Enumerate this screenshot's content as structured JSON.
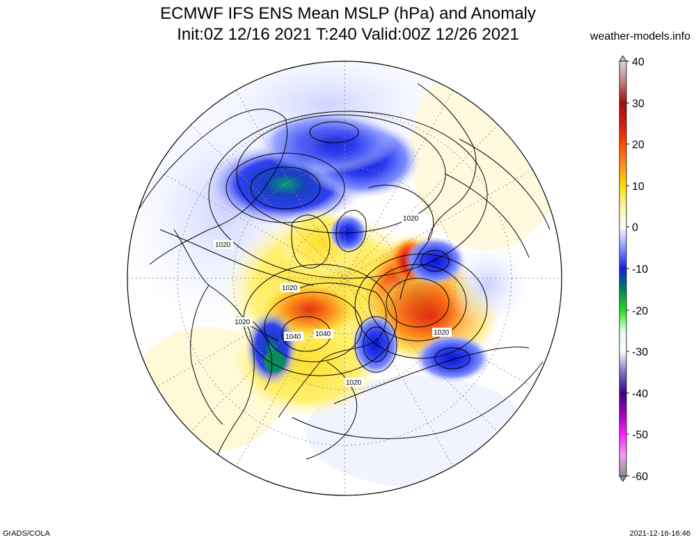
{
  "title_line1": "ECMWF IFS ENS Mean MSLP (hPa) and Anomaly",
  "title_line2": "Init:0Z 12/16 2021  T:240 Valid:00Z 12/26 2021",
  "source_site": "weather-models.info",
  "footer_left": "GrADS/COLA",
  "footer_right": "2021-12-16-16:46",
  "colorbar": {
    "ticks": [
      "40",
      "30",
      "20",
      "10",
      "0",
      "-10",
      "-20",
      "-30",
      "-40",
      "-50",
      "-60"
    ],
    "min": -60,
    "max": 40
  },
  "isobar_labels": [
    {
      "id": "a",
      "text": "1020"
    },
    {
      "id": "b",
      "text": "1020"
    },
    {
      "id": "c",
      "text": "1020"
    },
    {
      "id": "d",
      "text": "1020"
    },
    {
      "id": "e",
      "text": "1040"
    },
    {
      "id": "f",
      "text": "1040"
    },
    {
      "id": "g",
      "text": "1020"
    },
    {
      "id": "h",
      "text": "1020"
    }
  ],
  "colors": {
    "positive_strong": "#b01010",
    "positive_mid": "#ff4000",
    "positive_weak": "#ffee40",
    "negative_weak": "#a8b4ff",
    "negative_mid": "#2a3cf0",
    "negative_strong": "#008040"
  }
}
